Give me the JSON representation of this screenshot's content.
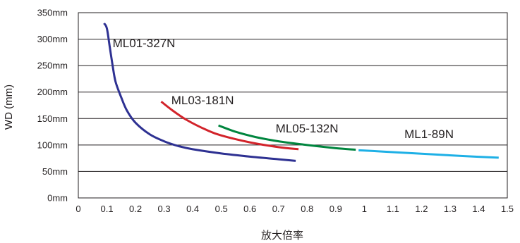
{
  "chart_data": {
    "type": "line",
    "title": "",
    "xlabel": "放大倍率",
    "ylabel": "WD (mm)",
    "xlim": [
      0,
      1.5
    ],
    "ylim": [
      0,
      350
    ],
    "grid": true,
    "x_ticks": [
      {
        "value": 0,
        "label": "0"
      },
      {
        "value": 0.1,
        "label": "0.1"
      },
      {
        "value": 0.2,
        "label": "0.2"
      },
      {
        "value": 0.3,
        "label": "0.3"
      },
      {
        "value": 0.4,
        "label": "0.4"
      },
      {
        "value": 0.5,
        "label": "0.5"
      },
      {
        "value": 0.6,
        "label": "0.6"
      },
      {
        "value": 0.7,
        "label": "0.7"
      },
      {
        "value": 0.8,
        "label": "0.8"
      },
      {
        "value": 0.9,
        "label": "0.9"
      },
      {
        "value": 1.0,
        "label": "1"
      },
      {
        "value": 1.1,
        "label": "1.1"
      },
      {
        "value": 1.2,
        "label": "1.2"
      },
      {
        "value": 1.3,
        "label": "1.3"
      },
      {
        "value": 1.4,
        "label": "1.4"
      },
      {
        "value": 1.5,
        "label": "1.5"
      }
    ],
    "y_ticks": [
      {
        "value": 0,
        "label": "0mm"
      },
      {
        "value": 50,
        "label": "50mm"
      },
      {
        "value": 100,
        "label": "100mm"
      },
      {
        "value": 150,
        "label": "150mm"
      },
      {
        "value": 200,
        "label": "200mm"
      },
      {
        "value": 250,
        "label": "250mm"
      },
      {
        "value": 300,
        "label": "300mm"
      },
      {
        "value": 350,
        "label": "350mm"
      }
    ],
    "series": [
      {
        "name": "ML01-327N",
        "color": "#2e3192",
        "label_at": [
          0.12,
          285
        ],
        "points": [
          [
            0.09,
            330
          ],
          [
            0.1,
            320
          ],
          [
            0.11,
            285
          ],
          [
            0.12,
            250
          ],
          [
            0.13,
            220
          ],
          [
            0.15,
            190
          ],
          [
            0.17,
            165
          ],
          [
            0.2,
            142
          ],
          [
            0.25,
            120
          ],
          [
            0.3,
            107
          ],
          [
            0.35,
            98
          ],
          [
            0.4,
            92
          ],
          [
            0.5,
            84
          ],
          [
            0.6,
            78
          ],
          [
            0.7,
            73
          ],
          [
            0.76,
            70
          ]
        ]
      },
      {
        "name": "ML03-181N",
        "color": "#d2232a",
        "label_at": [
          0.325,
          177
        ],
        "points": [
          [
            0.29,
            182
          ],
          [
            0.33,
            165
          ],
          [
            0.38,
            147
          ],
          [
            0.45,
            128
          ],
          [
            0.5,
            118
          ],
          [
            0.6,
            105
          ],
          [
            0.7,
            96
          ],
          [
            0.77,
            92
          ]
        ]
      },
      {
        "name": "ML05-132N",
        "color": "#00853e",
        "label_at": [
          0.69,
          124
        ],
        "points": [
          [
            0.49,
            137
          ],
          [
            0.55,
            125
          ],
          [
            0.62,
            115
          ],
          [
            0.7,
            107
          ],
          [
            0.8,
            100
          ],
          [
            0.9,
            94
          ],
          [
            0.97,
            91
          ]
        ]
      },
      {
        "name": "ML1-89N",
        "color": "#1eb0e6",
        "label_at": [
          1.14,
          113
        ],
        "points": [
          [
            0.98,
            90
          ],
          [
            1.05,
            88
          ],
          [
            1.15,
            85
          ],
          [
            1.25,
            82
          ],
          [
            1.35,
            79
          ],
          [
            1.47,
            76
          ]
        ]
      }
    ]
  }
}
